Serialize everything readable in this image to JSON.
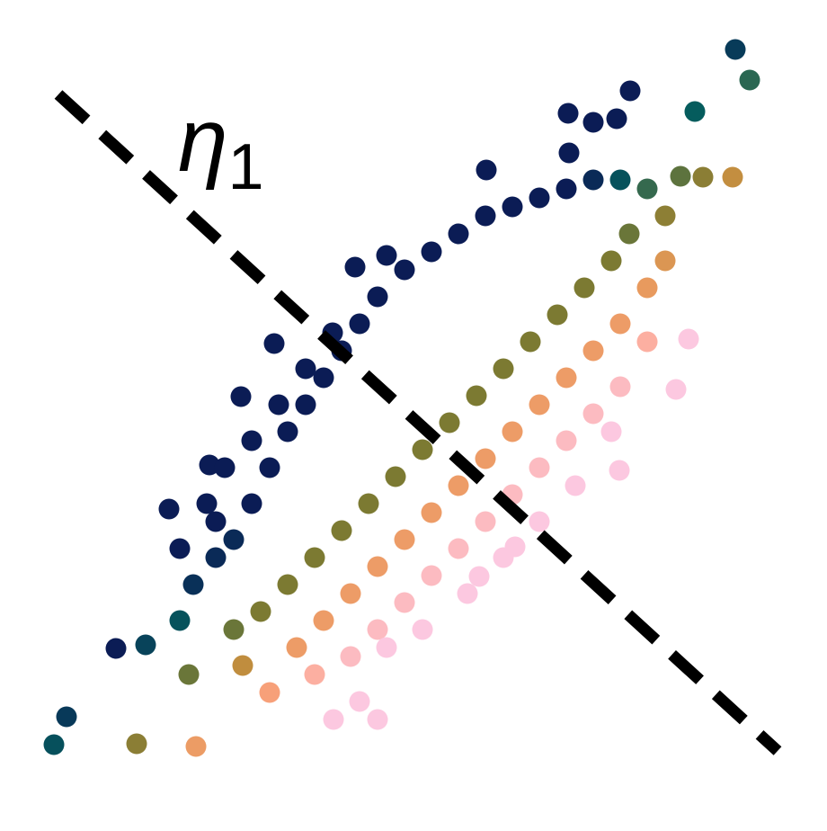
{
  "chart_data": {
    "type": "scatter",
    "xlim": [
      0,
      920
    ],
    "ylim": [
      924,
      0
    ],
    "grid": false,
    "x": [
      818,
      834,
      773,
      701,
      632,
      686,
      660,
      541,
      633,
      815,
      782,
      757,
      766,
      752,
      689,
      573,
      533,
      371,
      218,
      152,
      60,
      74,
      129,
      162,
      188,
      233,
      268,
      305,
      395,
      430,
      200,
      215,
      240,
      260,
      280,
      300,
      320,
      340,
      360,
      380,
      400,
      420,
      450,
      480,
      510,
      540,
      570,
      600,
      630,
      660,
      690,
      720,
      740,
      260,
      290,
      320,
      350,
      380,
      410,
      440,
      470,
      500,
      530,
      560,
      590,
      620,
      650,
      680,
      700,
      330,
      360,
      390,
      420,
      450,
      480,
      510,
      540,
      570,
      600,
      630,
      660,
      690,
      720,
      740,
      390,
      420,
      450,
      480,
      510,
      540,
      570,
      600,
      630,
      660,
      690,
      720,
      400,
      430,
      470,
      520,
      560,
      600,
      640,
      680,
      230,
      250,
      280,
      310,
      340,
      370,
      200,
      240,
      210,
      270,
      300,
      350,
      420
    ],
    "y": [
      55,
      89,
      124,
      101,
      126,
      132,
      136,
      189,
      170,
      197,
      197,
      196,
      377,
      433,
      523,
      608,
      641,
      800,
      830,
      827,
      828,
      797,
      721,
      717,
      566,
      517,
      441,
      382,
      297,
      284,
      690,
      650,
      620,
      600,
      560,
      520,
      480,
      450,
      420,
      390,
      360,
      330,
      300,
      280,
      260,
      240,
      230,
      220,
      210,
      200,
      200,
      210,
      240,
      700,
      680,
      650,
      620,
      590,
      560,
      530,
      500,
      470,
      440,
      410,
      380,
      350,
      320,
      290,
      260,
      720,
      690,
      660,
      630,
      600,
      570,
      540,
      510,
      480,
      450,
      420,
      390,
      360,
      320,
      290,
      730,
      700,
      670,
      640,
      610,
      580,
      550,
      520,
      490,
      460,
      430,
      380,
      780,
      720,
      700,
      660,
      620,
      580,
      540,
      480,
      560,
      520,
      490,
      450,
      410,
      370,
      610,
      580,
      750,
      740,
      770,
      750,
      800
    ],
    "color_by": "x + y",
    "color_scale": {
      "stops": [
        850,
        900,
        935,
        970,
        1010,
        1040,
        1080,
        1140
      ],
      "colors": [
        "#0b1c55",
        "#05605e",
        "#3d6b4b",
        "#7c7a32",
        "#c08d3e",
        "#e89a5e",
        "#fca282",
        "#fcc8e0"
      ]
    },
    "lines": [
      {
        "x": [
          65,
          865
        ],
        "y": [
          105,
          835
        ],
        "color": "#000000",
        "style": "dashed"
      }
    ],
    "annotations": [
      {
        "text": "η",
        "subscript": "1"
      }
    ]
  }
}
